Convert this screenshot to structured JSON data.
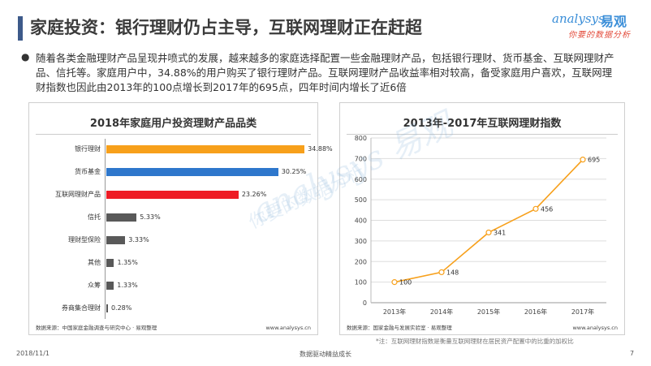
{
  "header": {
    "title": "家庭投资：银行理财仍占主导，互联网理财正在赶超",
    "logo_en": "analysys",
    "logo_cn": "易观",
    "logo_sub": "你要的数据分析"
  },
  "summary": {
    "bullet": "●",
    "text": "随着各类金融理财产品呈现井喷式的发展，越来越多的家庭选择配置一些金融理财产品，包括银行理财、货币基金、互联网理财产品、信托等。家庭用户中，34.88%的用户购买了银行理财产品。互联网理财产品收益率相对较高，备受家庭用户喜欢，互联网理财指数也因此由2013年的100点增长到2017年的695点，四年时间内增长了近6倍"
  },
  "watermark": {
    "en": "analysys 易观",
    "cn": "你要的数据分析"
  },
  "chart_data": [
    {
      "type": "bar",
      "orientation": "horizontal",
      "title": "2018年家庭用户投资理财产品品类",
      "categories": [
        "银行理财",
        "货币基金",
        "互联网理财产品",
        "信托",
        "理财型保险",
        "其他",
        "众筹",
        "券商集合理财"
      ],
      "values": [
        34.88,
        30.25,
        23.26,
        5.33,
        3.33,
        1.35,
        1.33,
        0.28
      ],
      "value_labels": [
        "34.88%",
        "30.25%",
        "23.26%",
        "5.33%",
        "3.33%",
        "1.35%",
        "1.33%",
        "0.28%"
      ],
      "colors": [
        "#f7a01b",
        "#2e77cc",
        "#ee1c25",
        "#595959",
        "#595959",
        "#595959",
        "#595959",
        "#595959"
      ],
      "source": "数据来源：中国家庭金融调查与研究中心 · 易观整理",
      "url": "www.analysys.cn"
    },
    {
      "type": "line",
      "title": "2013年-2017年互联网理财指数",
      "x": [
        "2013年",
        "2014年",
        "2015年",
        "2016年",
        "2017年"
      ],
      "values": [
        100,
        148,
        341,
        456,
        695
      ],
      "value_labels": [
        "100",
        "148",
        "341",
        "456",
        "695"
      ],
      "ylim": [
        0,
        800
      ],
      "yticks": [
        "0",
        "100",
        "200",
        "300",
        "400",
        "500",
        "600",
        "700",
        "800"
      ],
      "grid": true,
      "color": "#f7a01b",
      "source": "数据来源：国家金融与发展实验室 · 易观整理",
      "url": "www.analysys.cn"
    }
  ],
  "note": "*注：互联网理财指数是衡量互联网理财在居民资产配置中的比重的加权比",
  "footer": {
    "date": "2018/11/1",
    "center": "数据驱动精益成长",
    "page": "7"
  }
}
